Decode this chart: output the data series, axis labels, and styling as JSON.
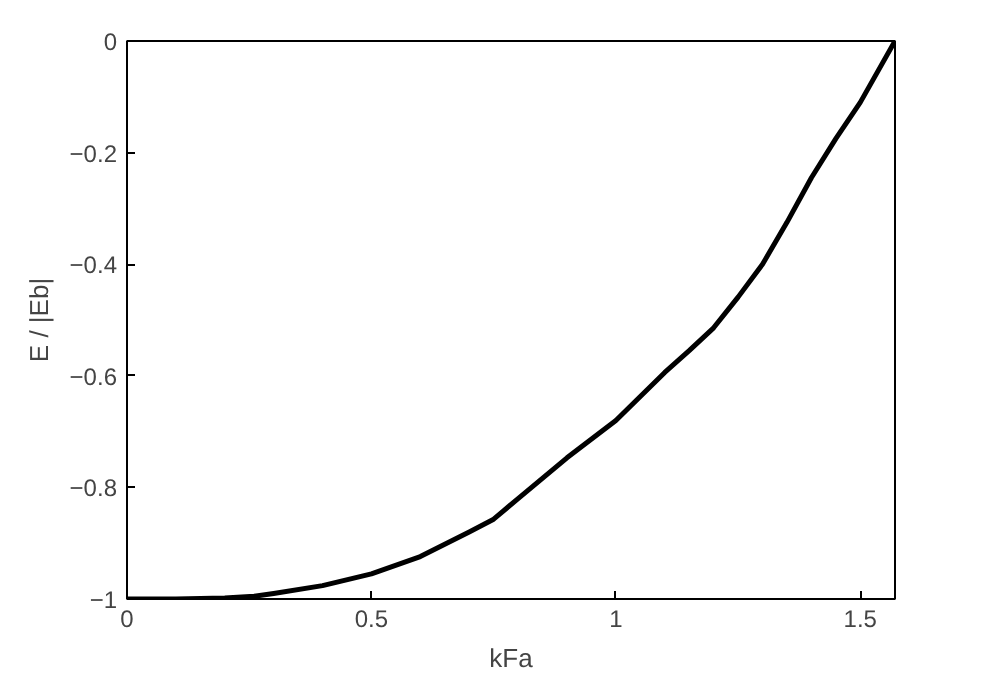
{
  "chart_data": {
    "type": "line",
    "xlabel": "kFa",
    "ylabel": "E / |Eb|",
    "x": [
      0,
      0.1,
      0.2,
      0.26,
      0.3,
      0.4,
      0.5,
      0.6,
      0.7,
      0.75,
      0.8,
      0.9,
      1.0,
      1.1,
      1.15,
      1.2,
      1.25,
      1.3,
      1.35,
      1.4,
      1.45,
      1.5,
      1.571
    ],
    "series": [
      {
        "color": "#000000",
        "values": [
          -1,
          -1,
          -0.998,
          -0.995,
          -0.99,
          -0.976,
          -0.955,
          -0.924,
          -0.88,
          -0.857,
          -0.82,
          -0.747,
          -0.68,
          -0.594,
          -0.555,
          -0.514,
          -0.459,
          -0.4,
          -0.325,
          -0.245,
          -0.175,
          -0.11,
          0
        ]
      }
    ],
    "xlim": [
      0,
      1.571
    ],
    "ylim": [
      -1,
      0
    ],
    "xticks": [
      0,
      0.5,
      1,
      1.5
    ],
    "yticks": [
      -1,
      -0.8,
      -0.6,
      -0.4,
      -0.2,
      0
    ],
    "line_style": "solid"
  }
}
